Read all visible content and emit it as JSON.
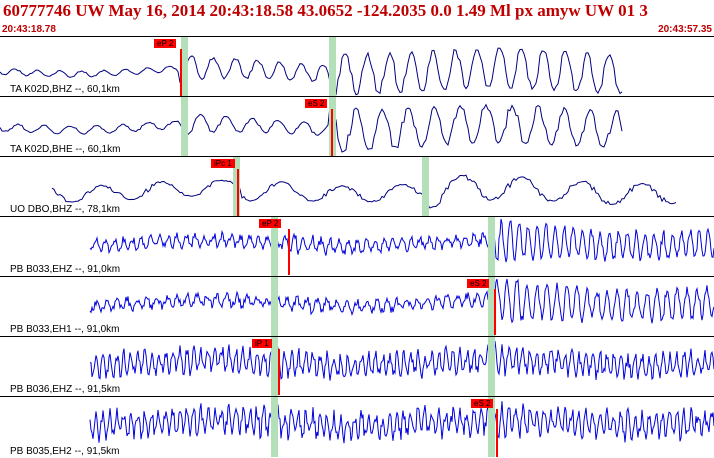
{
  "header": {
    "title": "60777746 UW May 16, 2014 20:43:18.58   43.0652 -124.2035  0.0 1.49 Ml px amyw UW 01   3",
    "time_start": "20:43:18.78",
    "time_end": "20:43:57.35"
  },
  "colors": {
    "title": "#c00000",
    "pick": "#ff0000",
    "band": "#b3e0b8",
    "trace_broadband": "#000080",
    "trace_shortperiod": "#0000dd"
  },
  "traces": [
    {
      "label": "TA K02D,BHZ --, 60,1km",
      "pick": "eP 2",
      "kind": "broadband"
    },
    {
      "label": "TA K02D,BHE --, 60,1km",
      "pick": "eS 2",
      "kind": "broadband"
    },
    {
      "label": "UO DBO,BHZ --, 78,1km",
      "pick": "iPc 1",
      "kind": "broadband"
    },
    {
      "label": "PB B033,EHZ --, 91,0km",
      "pick": "eP 2",
      "kind": "shortperiod"
    },
    {
      "label": "PB B033,EH1 --, 91,0km",
      "pick": "eS 2",
      "kind": "shortperiod"
    },
    {
      "label": "PB B036,EHZ --, 91,5km",
      "pick": "iP 1",
      "kind": "shortperiod"
    },
    {
      "label": "PB B035,EH2 --, 91,5km",
      "pick": "eS 2",
      "kind": "shortperiod"
    }
  ]
}
